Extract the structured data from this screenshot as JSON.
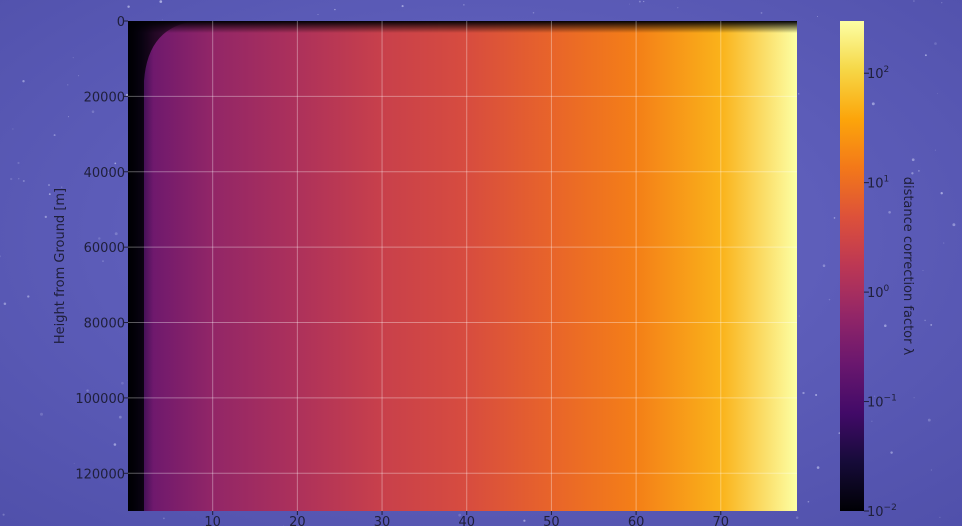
{
  "chart_data": {
    "type": "heatmap",
    "title": "",
    "xlabel": "",
    "ylabel": "Height from Ground [m]",
    "x_ticks": [
      10,
      20,
      30,
      40,
      50,
      60,
      70
    ],
    "x_tick_labels": [
      "10",
      "20",
      "30",
      "40",
      "50",
      "60",
      "70"
    ],
    "xlim": [
      0,
      79
    ],
    "y_ticks": [
      0,
      20000,
      40000,
      60000,
      80000,
      100000,
      120000
    ],
    "y_tick_labels": [
      "0",
      "20000",
      "40000",
      "60000",
      "80000",
      "100000",
      "120000"
    ],
    "ylim": [
      130000,
      0
    ],
    "y_inverted": true,
    "grid": true,
    "colormap": "inferno",
    "colorbar": {
      "label": "distance correction factor λ",
      "scale": "log",
      "range": [
        0.01,
        300
      ],
      "ticks": [
        0.01,
        0.1,
        1,
        10,
        100
      ],
      "tick_base": "10",
      "tick_exponents": [
        "−2",
        "−1",
        "0",
        "1",
        "2"
      ],
      "location": "right"
    },
    "sample_columns": [
      {
        "x": 0,
        "value": 0.01
      },
      {
        "x": 1,
        "value": 0.04
      },
      {
        "x": 3,
        "value": 0.25
      },
      {
        "x": 10,
        "value": 0.6
      },
      {
        "x": 20,
        "value": 1.2
      },
      {
        "x": 30,
        "value": 2.5
      },
      {
        "x": 40,
        "value": 4
      },
      {
        "x": 50,
        "value": 8
      },
      {
        "x": 60,
        "value": 16
      },
      {
        "x": 70,
        "value": 50
      },
      {
        "x": 79,
        "value": 300
      }
    ]
  },
  "colors": {
    "background": "#5a5ab8",
    "grid": "#ffffff",
    "text": "#1f1f3a"
  }
}
